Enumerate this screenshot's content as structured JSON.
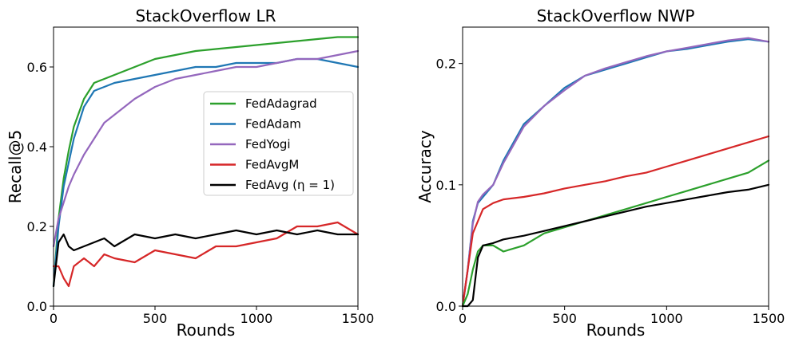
{
  "chart_data": [
    {
      "type": "line",
      "title": "StackOverflow LR",
      "xlabel": "Rounds",
      "ylabel": "Recall@5",
      "xlim": [
        0,
        1500
      ],
      "ylim": [
        0,
        0.7
      ],
      "xticks": [
        0,
        500,
        1000,
        1500
      ],
      "xtick_labels": [
        "0",
        "500",
        "1000",
        "1500"
      ],
      "yticks": [
        0,
        0.2,
        0.4,
        0.6
      ],
      "ytick_labels": [
        "0.0",
        "0.2",
        "0.4",
        "0.6"
      ],
      "grid": false,
      "legend": "center-right",
      "series": [
        {
          "name": "FedAdagrad",
          "color": "#2ca02c",
          "x": [
            0,
            25,
            50,
            75,
            100,
            150,
            200,
            250,
            300,
            400,
            500,
            600,
            700,
            800,
            900,
            1000,
            1100,
            1200,
            1300,
            1400,
            1500
          ],
          "values": [
            0.05,
            0.22,
            0.32,
            0.39,
            0.45,
            0.52,
            0.56,
            0.57,
            0.58,
            0.6,
            0.62,
            0.63,
            0.64,
            0.645,
            0.65,
            0.655,
            0.66,
            0.665,
            0.67,
            0.675,
            0.675
          ]
        },
        {
          "name": "FedAdam",
          "color": "#1f77b4",
          "x": [
            0,
            25,
            50,
            75,
            100,
            150,
            200,
            250,
            300,
            400,
            500,
            600,
            700,
            800,
            900,
            1000,
            1100,
            1200,
            1300,
            1400,
            1500
          ],
          "values": [
            0.05,
            0.2,
            0.3,
            0.36,
            0.42,
            0.5,
            0.54,
            0.55,
            0.56,
            0.57,
            0.58,
            0.59,
            0.6,
            0.6,
            0.61,
            0.61,
            0.61,
            0.62,
            0.62,
            0.61,
            0.6
          ]
        },
        {
          "name": "FedYogi",
          "color": "#9467bd",
          "x": [
            0,
            25,
            50,
            75,
            100,
            150,
            200,
            250,
            300,
            400,
            500,
            600,
            700,
            800,
            900,
            1000,
            1100,
            1200,
            1300,
            1400,
            1500
          ],
          "values": [
            0.15,
            0.22,
            0.26,
            0.3,
            0.33,
            0.38,
            0.42,
            0.46,
            0.48,
            0.52,
            0.55,
            0.57,
            0.58,
            0.59,
            0.6,
            0.6,
            0.61,
            0.62,
            0.62,
            0.63,
            0.64
          ]
        },
        {
          "name": "FedAvgM",
          "color": "#d62728",
          "x": [
            0,
            25,
            50,
            75,
            100,
            150,
            200,
            250,
            300,
            400,
            500,
            600,
            700,
            800,
            900,
            1000,
            1100,
            1200,
            1300,
            1400,
            1500
          ],
          "values": [
            0.1,
            0.1,
            0.07,
            0.05,
            0.1,
            0.12,
            0.1,
            0.13,
            0.12,
            0.11,
            0.14,
            0.13,
            0.12,
            0.15,
            0.15,
            0.16,
            0.17,
            0.2,
            0.2,
            0.21,
            0.18
          ]
        },
        {
          "name": "FedAvg (η = 1)",
          "color": "#000000",
          "x": [
            0,
            25,
            50,
            75,
            100,
            150,
            200,
            250,
            300,
            400,
            500,
            600,
            700,
            800,
            900,
            1000,
            1100,
            1200,
            1300,
            1400,
            1500
          ],
          "values": [
            0.05,
            0.16,
            0.18,
            0.15,
            0.14,
            0.15,
            0.16,
            0.17,
            0.15,
            0.18,
            0.17,
            0.18,
            0.17,
            0.18,
            0.19,
            0.18,
            0.19,
            0.18,
            0.19,
            0.18,
            0.18
          ]
        }
      ]
    },
    {
      "type": "line",
      "title": "StackOverflow NWP",
      "xlabel": "Rounds",
      "ylabel": "Accuracy",
      "xlim": [
        0,
        1500
      ],
      "ylim": [
        0,
        0.23
      ],
      "xticks": [
        0,
        500,
        1000,
        1500
      ],
      "xtick_labels": [
        "0",
        "500",
        "1000",
        "1500"
      ],
      "yticks": [
        0,
        0.1,
        0.2
      ],
      "ytick_labels": [
        "0.0",
        "0.1",
        "0.2"
      ],
      "grid": false,
      "series": [
        {
          "color": "#1f77b4",
          "x": [
            0,
            25,
            50,
            75,
            100,
            150,
            200,
            300,
            400,
            500,
            600,
            700,
            800,
            900,
            1000,
            1100,
            1200,
            1300,
            1400,
            1500
          ],
          "values": [
            0,
            0.03,
            0.07,
            0.085,
            0.09,
            0.1,
            0.12,
            0.15,
            0.165,
            0.18,
            0.19,
            0.195,
            0.2,
            0.205,
            0.21,
            0.212,
            0.215,
            0.218,
            0.22,
            0.218
          ]
        },
        {
          "color": "#9467bd",
          "x": [
            0,
            25,
            50,
            75,
            100,
            150,
            200,
            300,
            400,
            500,
            600,
            700,
            800,
            900,
            1000,
            1100,
            1200,
            1300,
            1400,
            1500
          ],
          "values": [
            0,
            0.03,
            0.068,
            0.086,
            0.092,
            0.1,
            0.118,
            0.148,
            0.165,
            0.178,
            0.19,
            0.196,
            0.201,
            0.206,
            0.21,
            0.213,
            0.216,
            0.219,
            0.221,
            0.218
          ]
        },
        {
          "color": "#d62728",
          "x": [
            0,
            25,
            50,
            75,
            100,
            150,
            200,
            300,
            400,
            500,
            600,
            700,
            800,
            900,
            1000,
            1100,
            1200,
            1300,
            1400,
            1500
          ],
          "values": [
            0,
            0.03,
            0.06,
            0.07,
            0.08,
            0.085,
            0.088,
            0.09,
            0.093,
            0.097,
            0.1,
            0.103,
            0.107,
            0.11,
            0.115,
            0.12,
            0.125,
            0.13,
            0.135,
            0.14
          ]
        },
        {
          "color": "#2ca02c",
          "x": [
            0,
            25,
            50,
            75,
            100,
            150,
            200,
            300,
            400,
            500,
            600,
            700,
            800,
            900,
            1000,
            1100,
            1200,
            1300,
            1400,
            1500
          ],
          "values": [
            0,
            0.01,
            0.03,
            0.045,
            0.05,
            0.05,
            0.045,
            0.05,
            0.06,
            0.065,
            0.07,
            0.075,
            0.08,
            0.085,
            0.09,
            0.095,
            0.1,
            0.105,
            0.11,
            0.12
          ]
        },
        {
          "color": "#000000",
          "x": [
            0,
            25,
            50,
            75,
            100,
            150,
            200,
            300,
            400,
            500,
            600,
            700,
            800,
            900,
            1000,
            1100,
            1200,
            1300,
            1400,
            1500
          ],
          "values": [
            0,
            0.0,
            0.005,
            0.04,
            0.05,
            0.052,
            0.055,
            0.058,
            0.062,
            0.066,
            0.07,
            0.074,
            0.078,
            0.082,
            0.085,
            0.088,
            0.091,
            0.094,
            0.096,
            0.1
          ]
        }
      ]
    }
  ]
}
